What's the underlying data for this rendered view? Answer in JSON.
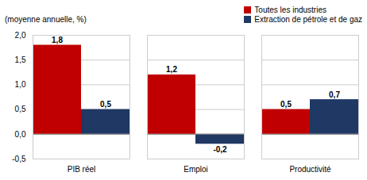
{
  "chart_data": {
    "type": "bar",
    "ylabel": "(moyenne annuelle, %)",
    "categories": [
      "PIB réel",
      "Emploi",
      "Productivité"
    ],
    "series": [
      {
        "name": "Toutes les industries",
        "color": "#C00000",
        "values": [
          1.8,
          1.2,
          0.5
        ],
        "value_labels": [
          "1,8",
          "1,2",
          "0,5"
        ]
      },
      {
        "name": "Extraction de pétrole et de gaz",
        "color": "#1F3864",
        "values": [
          0.5,
          -0.2,
          0.7
        ],
        "value_labels": [
          "0,5",
          "-0,2",
          "0,7"
        ]
      }
    ],
    "ylim": [
      -0.5,
      2.0
    ],
    "yticks": [
      {
        "value": -0.5,
        "label": "-0,5"
      },
      {
        "value": 0.0,
        "label": "0,0"
      },
      {
        "value": 0.5,
        "label": "0,5"
      },
      {
        "value": 1.0,
        "label": "1,0"
      },
      {
        "value": 1.5,
        "label": "1,5"
      },
      {
        "value": 2.0,
        "label": "2,0"
      }
    ],
    "grid": true,
    "legend": "upper right",
    "data_labels": true
  }
}
